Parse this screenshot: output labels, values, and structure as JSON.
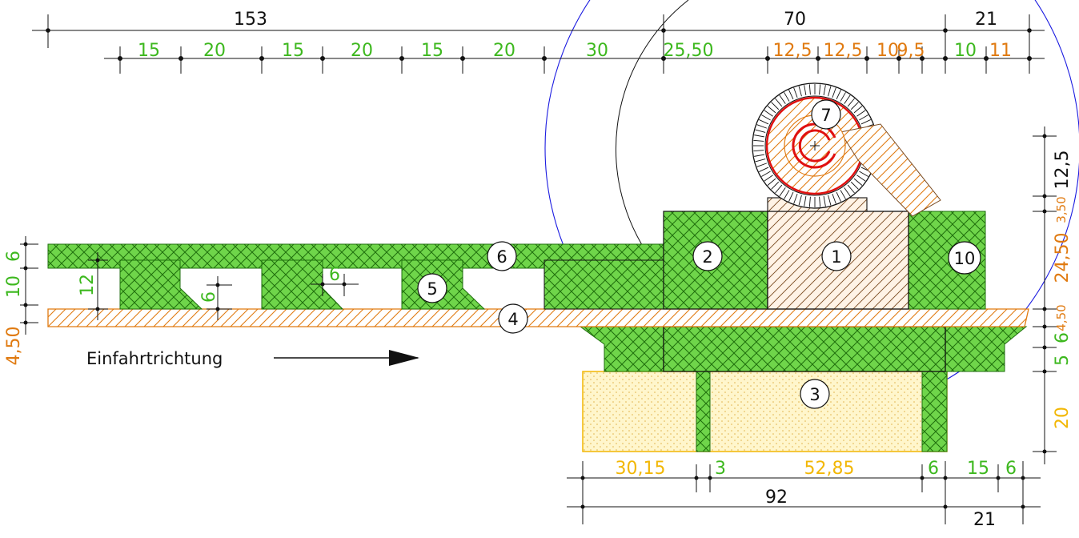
{
  "colors": {
    "green": "#3db81e",
    "orange": "#e07a10",
    "yellow": "#f2b705",
    "red": "#e01010",
    "blue": "#1a1ae0",
    "black": "#111111"
  },
  "top_dims_black": [
    "153",
    "70",
    "21"
  ],
  "top_dims_row2": [
    {
      "t": "15",
      "c": "green"
    },
    {
      "t": "20",
      "c": "green"
    },
    {
      "t": "15",
      "c": "green"
    },
    {
      "t": "20",
      "c": "green"
    },
    {
      "t": "15",
      "c": "green"
    },
    {
      "t": "20",
      "c": "green"
    },
    {
      "t": "30",
      "c": "green"
    },
    {
      "t": "25,50",
      "c": "green"
    },
    {
      "t": "12,5",
      "c": "orange"
    },
    {
      "t": "12,5",
      "c": "orange"
    },
    {
      "t": "10",
      "c": "orange"
    },
    {
      "t": "9,5",
      "c": "orange"
    },
    {
      "t": "10",
      "c": "green"
    },
    {
      "t": "11",
      "c": "orange"
    }
  ],
  "right_dims": [
    {
      "t": "12,5",
      "c": "black"
    },
    {
      "t": "3,50",
      "c": "orange"
    },
    {
      "t": "24,50",
      "c": "orange"
    },
    {
      "t": "4,50",
      "c": "orange"
    },
    {
      "t": "6",
      "c": "green"
    },
    {
      "t": "5",
      "c": "green"
    },
    {
      "t": "20",
      "c": "yellow"
    }
  ],
  "left_dims": [
    {
      "t": "6",
      "c": "green"
    },
    {
      "t": "10",
      "c": "green"
    },
    {
      "t": "4,50",
      "c": "orange"
    },
    {
      "t": "12",
      "c": "green"
    },
    {
      "t": "6",
      "c": "green"
    },
    {
      "t": "6",
      "c": "green"
    }
  ],
  "bottom_dims_row1": [
    {
      "t": "30,15",
      "c": "yellow"
    },
    {
      "t": "3",
      "c": "green"
    },
    {
      "t": "52,85",
      "c": "yellow"
    },
    {
      "t": "6",
      "c": "green"
    },
    {
      "t": "15",
      "c": "green"
    },
    {
      "t": "6",
      "c": "green"
    }
  ],
  "bottom_dims_black": [
    "92",
    "21"
  ],
  "labels": [
    "1",
    "2",
    "3",
    "4",
    "5",
    "6",
    "7",
    "10"
  ],
  "direction_text": "Einfahrtrichtung"
}
